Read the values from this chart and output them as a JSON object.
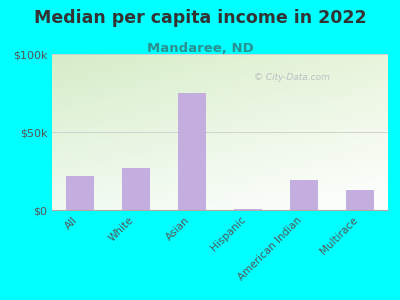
{
  "title": "Median per capita income in 2022",
  "subtitle": "Mandaree, ND",
  "categories": [
    "All",
    "White",
    "Asian",
    "Hispanic",
    "American Indian",
    "Multirace"
  ],
  "values": [
    22000,
    27000,
    75000,
    500,
    19000,
    13000
  ],
  "bar_color": "#c4aee0",
  "background_outer": "#00ffff",
  "background_inner_topleft": "#d6edc8",
  "background_inner_bottomright": "#f8fdf4",
  "background_inner_bottom": "#ffffff",
  "title_color": "#333333",
  "subtitle_color": "#2a9090",
  "tick_color": "#555555",
  "ytick_labels": [
    "$0",
    "$50k",
    "$100k"
  ],
  "ytick_values": [
    0,
    50000,
    100000
  ],
  "ylim": [
    0,
    100000
  ],
  "watermark": "© City-Data.com",
  "title_fontsize": 12.5,
  "subtitle_fontsize": 9.5
}
